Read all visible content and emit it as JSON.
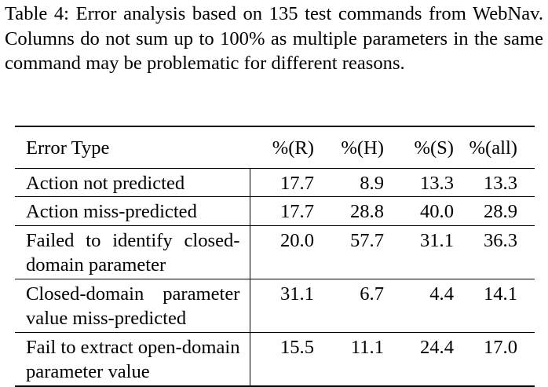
{
  "caption": "Table 4: Error analysis based on 135 test commands from WebNav. Columns do not sum up to 100% as multiple parameters in the same command may be problematic for different reasons.",
  "table": {
    "headers": [
      "Error Type",
      "%(R)",
      "%(H)",
      "%(S)",
      "%(all)"
    ],
    "rows": [
      {
        "label": "Action not predicted",
        "values": [
          "17.7",
          "8.9",
          "13.3",
          "13.3"
        ]
      },
      {
        "label": "Action miss-predicted",
        "values": [
          "17.7",
          "28.8",
          "40.0",
          "28.9"
        ]
      },
      {
        "label": "Failed to identify closed-domain parameter",
        "values": [
          "20.0",
          "57.7",
          "31.1",
          "36.3"
        ]
      },
      {
        "label": "Closed-domain parameter value miss-predicted",
        "values": [
          "31.1",
          "6.7",
          "4.4",
          "14.1"
        ]
      },
      {
        "label": "Fail to extract open-domain parameter value",
        "values": [
          "15.5",
          "11.1",
          "24.4",
          "17.0"
        ]
      }
    ]
  }
}
